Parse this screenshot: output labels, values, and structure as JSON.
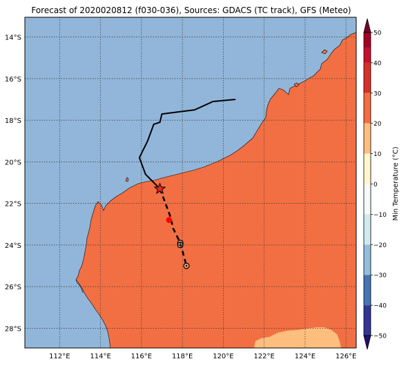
{
  "title": "Forecast of 2020020812 (f030-036), Sources: GDACS (TC track), GFS (Meteo)",
  "map": {
    "lon_range": [
      110.3,
      126.5
    ],
    "lat_range": [
      -28.95,
      -13.05
    ],
    "x_ticks": [
      {
        "value": 112,
        "label": "112°E"
      },
      {
        "value": 114,
        "label": "114°E"
      },
      {
        "value": 116,
        "label": "116°E"
      },
      {
        "value": 118,
        "label": "118°E"
      },
      {
        "value": 120,
        "label": "120°E"
      },
      {
        "value": 122,
        "label": "122°E"
      },
      {
        "value": 124,
        "label": "124°E"
      },
      {
        "value": 126,
        "label": "126°E"
      }
    ],
    "y_ticks": [
      {
        "value": -14,
        "label": "14°S"
      },
      {
        "value": -16,
        "label": "16°S"
      },
      {
        "value": -18,
        "label": "18°S"
      },
      {
        "value": -20,
        "label": "20°S"
      },
      {
        "value": -22,
        "label": "22°S"
      },
      {
        "value": -24,
        "label": "24°S"
      },
      {
        "value": -26,
        "label": "26°S"
      },
      {
        "value": -28,
        "label": "28°S"
      }
    ],
    "gridlines": "dotted",
    "colors": {
      "ocean": "#91b6d9",
      "land": "#f26f43",
      "warm_patch": "#fdbe7e",
      "coast": "#000000"
    }
  },
  "track": {
    "past": [
      [
        120.6,
        -17.0
      ],
      [
        119.5,
        -17.1
      ],
      [
        118.6,
        -17.5
      ],
      [
        117.0,
        -17.7
      ],
      [
        116.9,
        -18.1
      ],
      [
        116.6,
        -18.2
      ],
      [
        116.3,
        -19.0
      ],
      [
        115.9,
        -19.8
      ],
      [
        116.2,
        -20.6
      ],
      [
        116.9,
        -21.3
      ]
    ],
    "forecast": [
      [
        116.9,
        -21.3
      ],
      [
        117.1,
        -21.8
      ],
      [
        117.4,
        -22.6
      ],
      [
        117.55,
        -23.2
      ],
      [
        117.9,
        -23.9
      ],
      [
        118.2,
        -25.0
      ]
    ],
    "current_position": [
      116.9,
      -21.3
    ],
    "markers": [
      {
        "lon": 117.35,
        "lat": -22.8,
        "kind": "filled-red-dot",
        "color": "#ff0000"
      },
      {
        "lon": 117.9,
        "lat": -23.9,
        "kind": "open-circle"
      },
      {
        "lon": 117.9,
        "lat": -24.0,
        "kind": "open-circle"
      },
      {
        "lon": 118.2,
        "lat": -25.0,
        "kind": "open-circle"
      }
    ]
  },
  "colorbar": {
    "label": "Min Temperature (°C)",
    "ticks": [
      {
        "value": 50,
        "label": "50"
      },
      {
        "value": 40,
        "label": "40"
      },
      {
        "value": 30,
        "label": "30"
      },
      {
        "value": 20,
        "label": "20"
      },
      {
        "value": 10,
        "label": "10"
      },
      {
        "value": 0,
        "label": "0"
      },
      {
        "value": -10,
        "label": "−10"
      },
      {
        "value": -20,
        "label": "−20"
      },
      {
        "value": -30,
        "label": "−30"
      },
      {
        "value": -40,
        "label": "−40"
      },
      {
        "value": -50,
        "label": "−50"
      }
    ],
    "bins": [
      {
        "from": 45,
        "to": 50,
        "color": "#a50026"
      },
      {
        "from": 40,
        "to": 45,
        "color": "#c8102e"
      },
      {
        "from": 30,
        "to": 40,
        "color": "#d73027"
      },
      {
        "from": 20,
        "to": 30,
        "color": "#f46d43"
      },
      {
        "from": 10,
        "to": 20,
        "color": "#fdbe7e"
      },
      {
        "from": 0,
        "to": 10,
        "color": "#fff7cc"
      },
      {
        "from": -10,
        "to": 0,
        "color": "#f4fbf8"
      },
      {
        "from": -20,
        "to": -10,
        "color": "#d0eaf0"
      },
      {
        "from": -30,
        "to": -20,
        "color": "#91bfdb"
      },
      {
        "from": -40,
        "to": -30,
        "color": "#4575b4"
      },
      {
        "from": -50,
        "to": -40,
        "color": "#313695"
      }
    ],
    "extend_top_color": "#7a0026",
    "extend_bottom_color": "#23106b"
  }
}
